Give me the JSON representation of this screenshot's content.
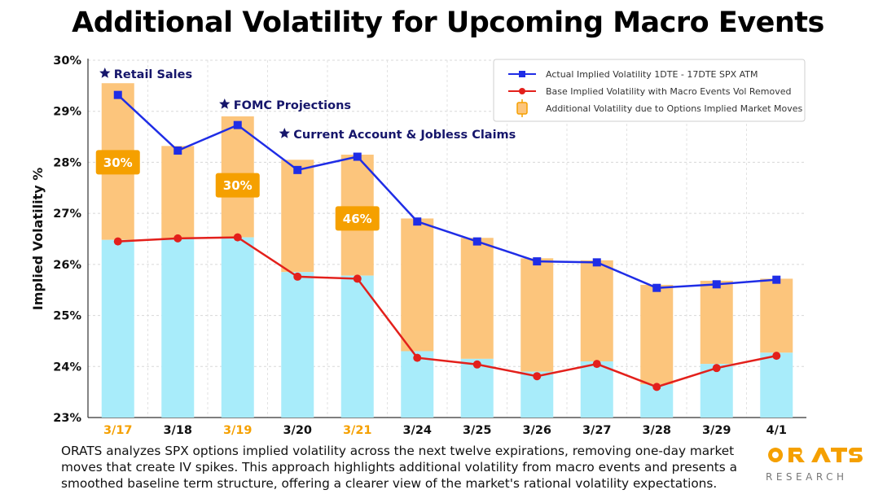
{
  "chart_data": {
    "type": "bar",
    "title": "Additional Volatility for Upcoming Macro Events",
    "ylabel": "Implied Volatility %",
    "ylim": [
      23,
      30
    ],
    "yticks": [
      "23%",
      "24%",
      "25%",
      "26%",
      "27%",
      "28%",
      "29%",
      "30%"
    ],
    "categories": [
      "3/17",
      "3/18",
      "3/19",
      "3/20",
      "3/21",
      "3/24",
      "3/25",
      "3/26",
      "3/27",
      "3/28",
      "3/29",
      "4/1"
    ],
    "highlighted_categories": [
      "3/17",
      "3/19",
      "3/21"
    ],
    "series": [
      {
        "name": "Actual Implied Volatility 1DTE - 17DTE  SPX  ATM",
        "type": "line",
        "marker": "square",
        "color": "#1f2de6",
        "values": [
          29.32,
          28.23,
          28.73,
          27.85,
          28.11,
          26.84,
          26.45,
          26.06,
          26.04,
          25.54,
          25.61,
          25.7
        ]
      },
      {
        "name": "Base Implied Volatility with Macro Events Vol Removed",
        "type": "line",
        "marker": "circle",
        "color": "#e3201b",
        "values": [
          26.45,
          26.51,
          26.53,
          25.76,
          25.72,
          24.17,
          24.04,
          23.81,
          24.05,
          23.6,
          23.97,
          24.21
        ]
      },
      {
        "name": "Additional Volatility due to Options Implied Market Moves",
        "type": "bar",
        "color": "#fcc57c",
        "bar_top": [
          29.55,
          28.32,
          28.9,
          28.05,
          28.15,
          26.9,
          26.52,
          26.12,
          26.08,
          25.6,
          25.68,
          25.72
        ]
      }
    ],
    "base_bar_color": "#a8ecfa",
    "base_bar_top": [
      26.48,
      26.5,
      26.53,
      25.85,
      25.78,
      24.3,
      24.15,
      23.9,
      24.1,
      23.65,
      24.05,
      24.27
    ],
    "annotations": [
      {
        "text": "Retail Sales",
        "category": "3/17"
      },
      {
        "text": "FOMC Projections",
        "category": "3/19"
      },
      {
        "text": "Current Account & Jobless Claims",
        "category": "3/20"
      }
    ],
    "badges": [
      {
        "text": "30%",
        "category": "3/17",
        "y": 28.0
      },
      {
        "text": "30%",
        "category": "3/19",
        "y": 27.55
      },
      {
        "text": "46%",
        "category": "3/21",
        "y": 26.9
      }
    ],
    "grid": true,
    "legend_position": "top-right"
  },
  "caption": "ORATS analyzes SPX options implied volatility across the next twelve expirations, removing one-day market moves that create IV spikes. This approach highlights additional volatility from macro events and presents a smoothed baseline term structure, offering a clearer view of the market's rational volatility expectations.",
  "logo": {
    "brand": "ORATS",
    "subtitle": "RESEARCH"
  },
  "colors": {
    "accent_orange": "#f5a000",
    "highlight_tick": "#f5a000"
  }
}
